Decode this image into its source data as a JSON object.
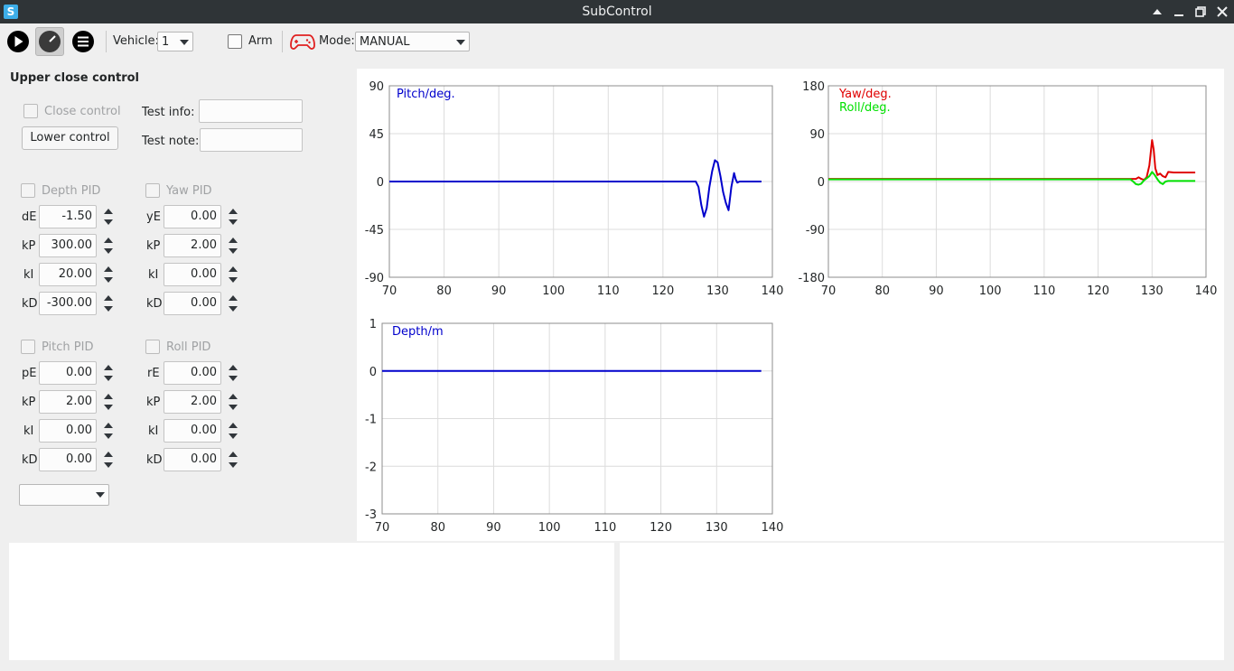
{
  "window": {
    "title": "SubControl",
    "app_icon_letter": "S"
  },
  "toolbar": {
    "vehicle_label": "Vehicle:",
    "vehicle_value": "1",
    "arm_label": "Arm",
    "mode_label": "Mode:",
    "mode_value": "MANUAL"
  },
  "control": {
    "group_title": "Upper close control",
    "close_control_label": "Close control",
    "lower_control_label": "Lower control",
    "test_info_label": "Test info:",
    "test_note_label": "Test note:",
    "test_info_value": "",
    "test_note_value": ""
  },
  "pid": {
    "depth": {
      "title": "Depth PID",
      "rows": [
        {
          "label": "dE",
          "value": "-1.50"
        },
        {
          "label": "kP",
          "value": "300.00"
        },
        {
          "label": "kI",
          "value": "20.00"
        },
        {
          "label": "kD",
          "value": "-300.00"
        }
      ]
    },
    "yaw": {
      "title": "Yaw PID",
      "rows": [
        {
          "label": "yE",
          "value": "0.00"
        },
        {
          "label": "kP",
          "value": "2.00"
        },
        {
          "label": "kI",
          "value": "0.00"
        },
        {
          "label": "kD",
          "value": "0.00"
        }
      ]
    },
    "pitch": {
      "title": "Pitch PID",
      "rows": [
        {
          "label": "pE",
          "value": "0.00"
        },
        {
          "label": "kP",
          "value": "2.00"
        },
        {
          "label": "kI",
          "value": "0.00"
        },
        {
          "label": "kD",
          "value": "0.00"
        }
      ]
    },
    "roll": {
      "title": "Roll PID",
      "rows": [
        {
          "label": "rE",
          "value": "0.00"
        },
        {
          "label": "kP",
          "value": "2.00"
        },
        {
          "label": "kI",
          "value": "0.00"
        },
        {
          "label": "kD",
          "value": "0.00"
        }
      ]
    }
  },
  "bottom_combo_value": "",
  "colors": {
    "blue": "#0000cc",
    "red": "#e00000",
    "green": "#00e000",
    "grid": "#dcdcdc",
    "axis": "#8c8c8c",
    "titlebar": "#2f3437"
  },
  "chart_data": [
    {
      "type": "line",
      "xlim": [
        70,
        140
      ],
      "ylim": [
        -90,
        90
      ],
      "xticks": [
        70,
        80,
        90,
        100,
        110,
        120,
        130,
        140
      ],
      "yticks": [
        90,
        45,
        0,
        -45,
        -90
      ],
      "series": [
        {
          "name": "Pitch/deg.",
          "color": "#0000cc",
          "x": [
            70,
            126,
            126.5,
            127,
            127.5,
            128,
            128.5,
            129,
            129.5,
            130,
            130.5,
            131,
            131.5,
            132,
            132.5,
            133,
            133.3,
            133.6,
            134,
            135,
            138
          ],
          "y": [
            0,
            0,
            -5,
            -22,
            -33,
            -25,
            -5,
            10,
            20,
            18,
            5,
            -10,
            -20,
            -27,
            -5,
            8,
            2,
            -1,
            0,
            0,
            0
          ]
        }
      ]
    },
    {
      "type": "line",
      "xlim": [
        70,
        140
      ],
      "ylim": [
        -180,
        180
      ],
      "xticks": [
        70,
        80,
        90,
        100,
        110,
        120,
        130,
        140
      ],
      "yticks": [
        180,
        90,
        0,
        -90,
        -180
      ],
      "series": [
        {
          "name": "Yaw/deg.",
          "color": "#e00000",
          "x": [
            70,
            127,
            127.5,
            128,
            128.5,
            129,
            129.5,
            130,
            130.3,
            130.6,
            131,
            131.5,
            132,
            132.5,
            133,
            134,
            138
          ],
          "y": [
            5,
            5,
            8,
            5,
            3,
            8,
            30,
            78,
            60,
            25,
            12,
            15,
            10,
            8,
            18,
            17,
            17
          ]
        },
        {
          "name": "Roll/deg.",
          "color": "#00e000",
          "x": [
            70,
            126,
            126.5,
            127,
            127.5,
            128,
            128.5,
            129,
            129.5,
            130,
            130.5,
            131,
            131.5,
            132,
            132.5,
            133,
            138
          ],
          "y": [
            4,
            4,
            0,
            -5,
            -6,
            -4,
            2,
            6,
            10,
            18,
            12,
            4,
            -2,
            -5,
            0,
            1,
            1
          ]
        }
      ]
    },
    {
      "type": "line",
      "xlim": [
        70,
        140
      ],
      "ylim": [
        -3,
        1
      ],
      "xticks": [
        70,
        80,
        90,
        100,
        110,
        120,
        130,
        140
      ],
      "yticks": [
        1,
        0,
        -1,
        -2,
        -3
      ],
      "series": [
        {
          "name": "Depth/m",
          "color": "#0000cc",
          "x": [
            70,
            138
          ],
          "y": [
            0,
            0
          ]
        }
      ]
    }
  ]
}
